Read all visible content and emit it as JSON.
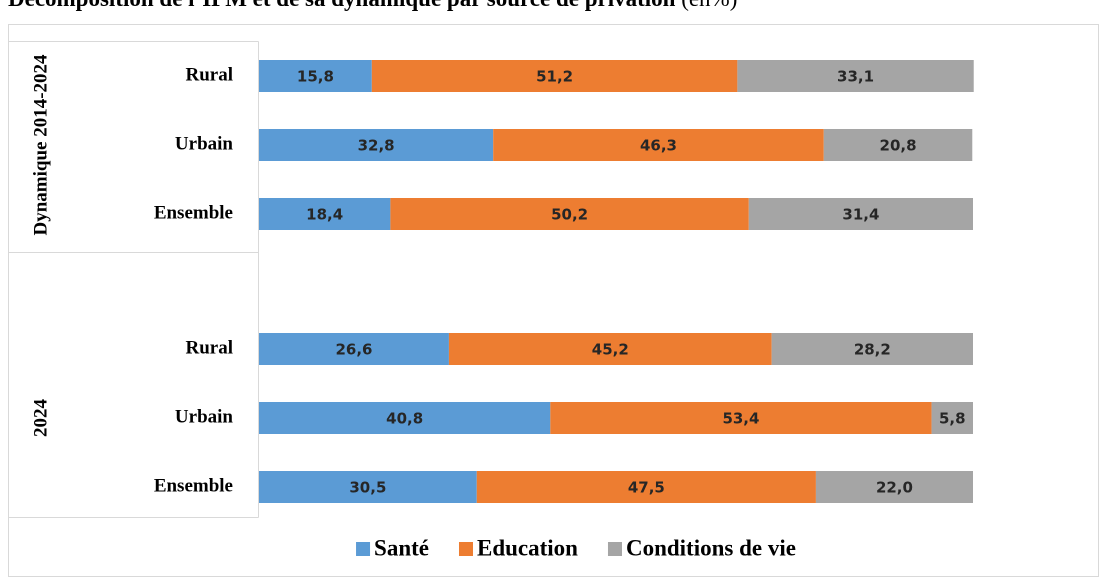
{
  "chart_data": {
    "type": "stacked-barh",
    "title": "Décomposition de l’IPM et de sa dynamique par source de privation",
    "unit": "(en%)",
    "groups": [
      {
        "name": "Dynamique 2014-2024",
        "categories": [
          "Rural",
          "Urbain",
          "Ensemble"
        ]
      },
      {
        "name": "2024",
        "categories": [
          "Rural",
          "Urbain",
          "Ensemble"
        ]
      }
    ],
    "xlim": [
      0,
      100
    ],
    "series": [
      {
        "name": "Santé",
        "color": "#5b9bd5",
        "values": [
          15.8,
          32.8,
          18.4,
          26.6,
          40.8,
          30.5
        ],
        "value_labels": [
          "15,8",
          "32,8",
          "18,4",
          "26,6",
          "40,8",
          "30,5"
        ]
      },
      {
        "name": "Education",
        "color": "#ed7d31",
        "values": [
          51.2,
          46.3,
          50.2,
          45.2,
          53.4,
          47.5
        ],
        "value_labels": [
          "51,2",
          "46,3",
          "50,2",
          "45,2",
          "53,4",
          "47,5"
        ]
      },
      {
        "name": "Conditions de vie",
        "color": "#a5a5a5",
        "values": [
          33.1,
          20.8,
          31.4,
          28.2,
          5.8,
          22.0
        ],
        "value_labels": [
          "33,1",
          "20,8",
          "31,4",
          "28,2",
          "5,8",
          "22,0"
        ]
      }
    ],
    "legend": "bottom"
  }
}
